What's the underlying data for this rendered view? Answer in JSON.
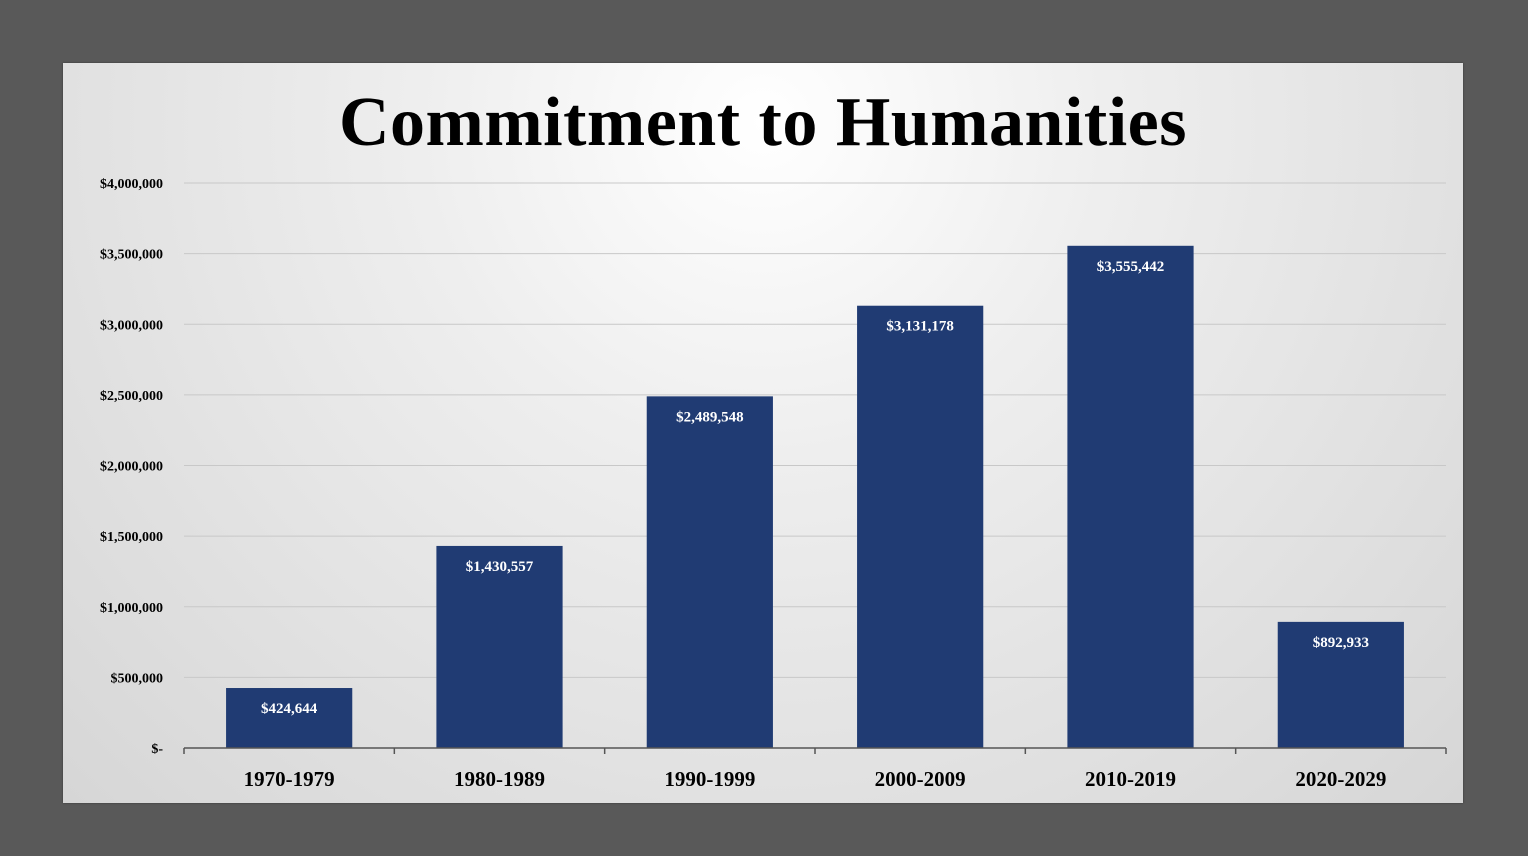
{
  "chart_data": {
    "type": "bar",
    "title": "Commitment to Humanities",
    "xlabel": "",
    "ylabel": "",
    "categories": [
      "1970-1979",
      "1980-1989",
      "1990-1999",
      "2000-2009",
      "2010-2019",
      "2020-2029"
    ],
    "values": [
      424644,
      1430557,
      2489548,
      3131178,
      3555442,
      892933
    ],
    "data_labels": [
      "$424,644",
      "$1,430,557",
      "$2,489,548",
      "$3,131,178",
      "$3,555,442",
      "$892,933"
    ],
    "ylim": [
      0,
      4000000
    ],
    "yticks": [
      0,
      500000,
      1000000,
      1500000,
      2000000,
      2500000,
      3000000,
      3500000,
      4000000
    ],
    "ytick_labels": [
      "$-",
      "$500,000",
      "$1,000,000",
      "$1,500,000",
      "$2,000,000",
      "$2,500,000",
      "$3,000,000",
      "$3,500,000",
      "$4,000,000"
    ],
    "grid": true,
    "legend": "none",
    "colors": {
      "bar": "#203b73",
      "gridline": "#c8c8c8",
      "axis": "#555555",
      "frame": "#595959"
    }
  }
}
